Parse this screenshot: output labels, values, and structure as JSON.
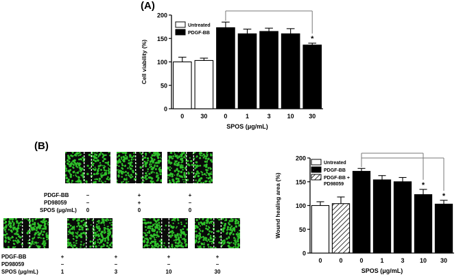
{
  "panel_a_label": "(A)",
  "panel_b_label": "(B)",
  "chart_data": [
    {
      "type": "bar",
      "title": "",
      "xlabel": "SPOS (μg/mL)",
      "ylabel": "Cell viability (%)",
      "ylim": [
        0,
        200
      ],
      "yticks": [
        0,
        50,
        100,
        150,
        200
      ],
      "categories": [
        "0",
        "30",
        "0",
        "1",
        "3",
        "10",
        "30"
      ],
      "groups": [
        "Untreated",
        "Untreated",
        "PDGF-BB",
        "PDGF-BB",
        "PDGF-BB",
        "PDGF-BB",
        "PDGF-BB"
      ],
      "values": [
        100,
        103,
        173,
        160,
        165,
        160,
        136
      ],
      "errors": [
        10,
        5,
        12,
        10,
        7,
        11,
        4
      ],
      "significance": [
        "",
        "",
        "",
        "",
        "",
        "",
        "*"
      ],
      "legend": [
        {
          "label": "Untreated",
          "fill": "#ffffff"
        },
        {
          "label": "PDGF-BB",
          "fill": "#000000"
        }
      ],
      "legend_position": "top-left",
      "comparison": {
        "from": "0",
        "to": "30"
      }
    },
    {
      "type": "bar",
      "title": "",
      "xlabel": "SPOS (μg/mL)",
      "ylabel": "Wound healing area (%)",
      "ylim": [
        0,
        200
      ],
      "yticks": [
        0,
        50,
        100,
        150,
        200
      ],
      "categories": [
        "0",
        "0",
        "0",
        "1",
        "3",
        "10",
        "30"
      ],
      "groups": [
        "Untreated",
        "PDGF-BB + PD98059",
        "PDGF-BB",
        "PDGF-BB",
        "PDGF-BB",
        "PDGF-BB",
        "PDGF-BB"
      ],
      "values": [
        100,
        104,
        172,
        154,
        150,
        123,
        103
      ],
      "errors": [
        8,
        14,
        6,
        9,
        9,
        11,
        8
      ],
      "significance": [
        "",
        "",
        "",
        "",
        "",
        "*",
        "*"
      ],
      "legend": [
        {
          "label": "Untreated",
          "fill": "#ffffff"
        },
        {
          "label": "PDGF-BB",
          "fill": "#000000"
        },
        {
          "label": "PDGF-BB +\nPD98059",
          "fill": "hatch"
        }
      ],
      "legend_position": "top-left",
      "comparisons": [
        {
          "from": "0",
          "to": "10"
        },
        {
          "from": "0",
          "to": "30"
        }
      ]
    }
  ],
  "wound_grid": {
    "row1": {
      "labels": [
        "PDGF-BB",
        "PD98059",
        "SPOS (μg/mL)"
      ],
      "columns": [
        {
          "pdgf": "–",
          "pd98059": "–",
          "spos": "0"
        },
        {
          "pdgf": "+",
          "pd98059": "+",
          "spos": "0"
        },
        {
          "pdgf": "+",
          "pd98059": "–",
          "spos": "0"
        }
      ]
    },
    "row2": {
      "labels": [
        "PDGF-BB",
        "PD98059",
        "SPOS (μg/mL)"
      ],
      "columns": [
        {
          "pdgf": "+",
          "pd98059": "–",
          "spos": "1"
        },
        {
          "pdgf": "+",
          "pd98059": "–",
          "spos": "3"
        },
        {
          "pdgf": "+",
          "pd98059": "–",
          "spos": "10"
        },
        {
          "pdgf": "+",
          "pd98059": "–",
          "spos": "30"
        }
      ]
    }
  },
  "colors": {
    "cell_green": "#2fc12a",
    "background": "#0a0a0a"
  }
}
